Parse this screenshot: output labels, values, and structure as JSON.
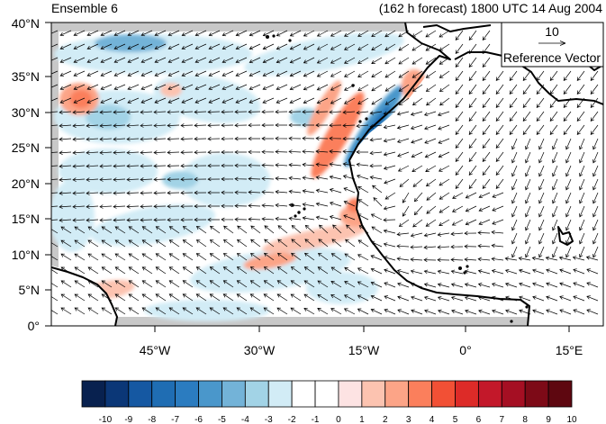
{
  "title_left": "Ensemble 6",
  "title_right": "(162 h forecast) 1800 UTC 14 Aug 2004",
  "reference_vector": {
    "magnitude": "10",
    "label": "Reference Vector"
  },
  "lat_labels": [
    "0°",
    "5°N",
    "10°N",
    "15°N",
    "20°N",
    "25°N",
    "30°N",
    "35°N",
    "40°N"
  ],
  "lon_labels": [
    "45°W",
    "30°W",
    "15°W",
    "0°",
    "15°E"
  ],
  "colorbar": {
    "labels": [
      "-10",
      "-9",
      "-8",
      "-7",
      "-6",
      "-5",
      "-4",
      "-3",
      "-2",
      "-1",
      "0",
      "1",
      "2",
      "3",
      "4",
      "5",
      "6",
      "7",
      "8",
      "9",
      "10"
    ],
    "colors": [
      "#08214f",
      "#0b3777",
      "#1558a2",
      "#1f6db3",
      "#2b7cc0",
      "#4a97cb",
      "#73b3d8",
      "#a2d3e6",
      "#d2ecf6",
      "#ffffff",
      "#ffffff",
      "#fde3e3",
      "#fcc3b0",
      "#fca487",
      "#fb7f5c",
      "#f25035",
      "#dd2b28",
      "#c3182a",
      "#a50f23",
      "#7d0a17",
      "#5e0710"
    ]
  },
  "colors": {
    "land": "#ffffff",
    "missing": "#c8c8c8",
    "coast": "#000000",
    "vector": "#000000"
  }
}
